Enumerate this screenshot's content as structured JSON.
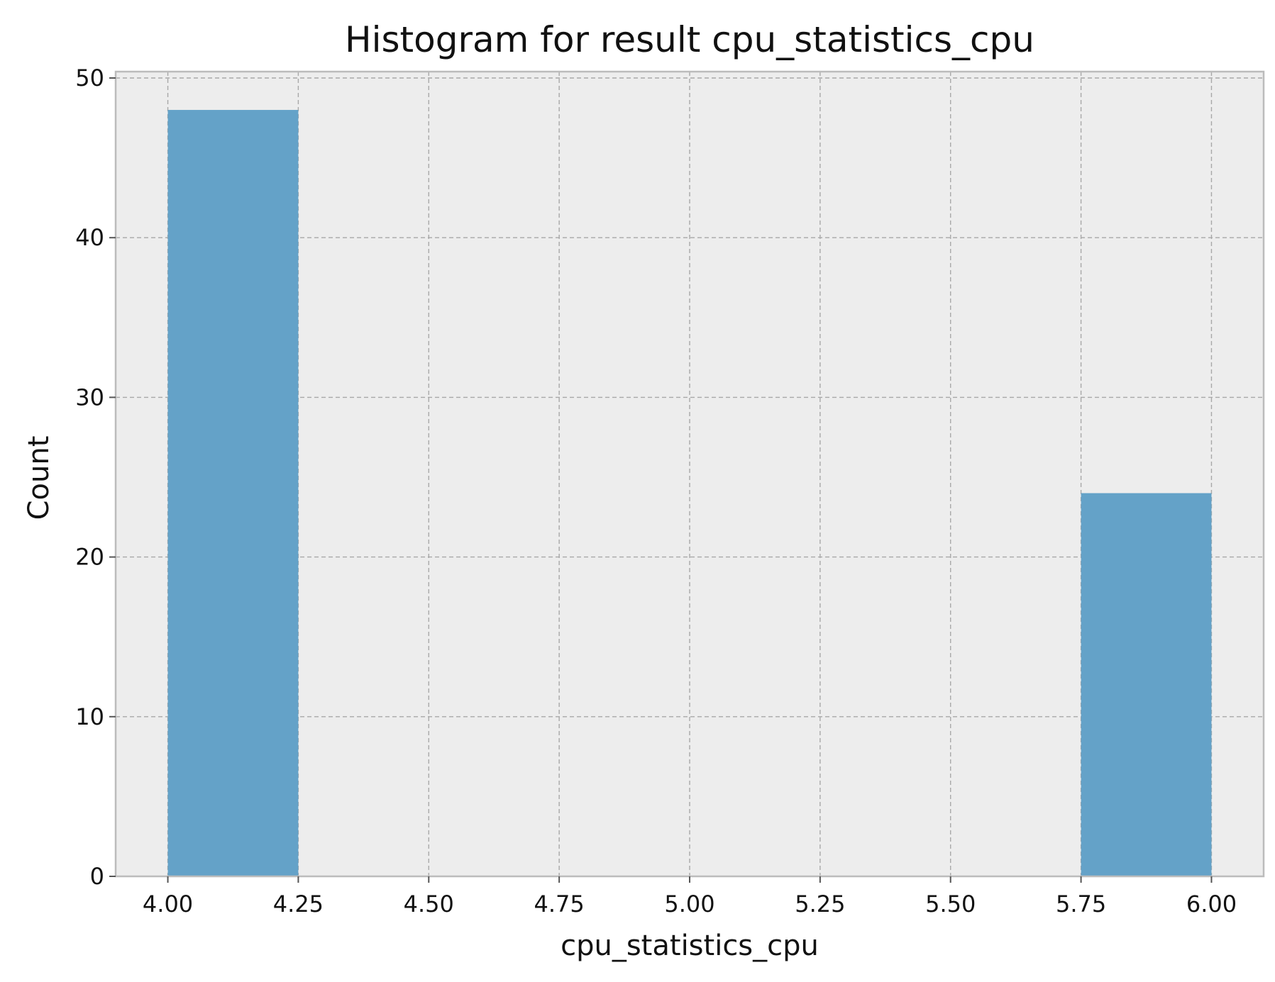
{
  "chart_data": {
    "type": "bar",
    "title": "Histogram for result cpu_statistics_cpu",
    "xlabel": "cpu_statistics_cpu",
    "ylabel": "Count",
    "bins": [
      {
        "start": 4.0,
        "end": 4.25,
        "count": 48
      },
      {
        "start": 5.75,
        "end": 6.0,
        "count": 24
      }
    ],
    "xticks": [
      "4.00",
      "4.25",
      "4.50",
      "4.75",
      "5.00",
      "5.25",
      "5.50",
      "5.75",
      "6.00"
    ],
    "yticks": [
      "0",
      "10",
      "20",
      "30",
      "40",
      "50"
    ],
    "xlim": [
      3.9,
      6.1
    ],
    "ylim": [
      0,
      50.4
    ],
    "grid": true,
    "bar_color": "#64a2c8",
    "plot_background": "#ededed"
  }
}
